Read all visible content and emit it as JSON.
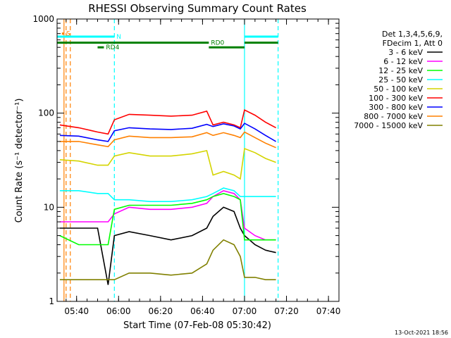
{
  "chart_data": {
    "type": "line",
    "title": "RHESSI Observing Summary Count Rates",
    "xlabel": "Start Time (07-Feb-08 05:30:42)",
    "ylabel": "Count Rate (s⁻¹ detector⁻¹)",
    "y_scale": "log",
    "ylim": [
      1,
      1000
    ],
    "xlim": [
      "05:30:42",
      "07:45:00"
    ],
    "x_ticks": [
      "05:40",
      "06:00",
      "06:20",
      "06:40",
      "07:00",
      "07:20",
      "07:40"
    ],
    "y_ticks": [
      "1",
      "10",
      "100",
      "1000"
    ],
    "legend_header": [
      "Det 1,3,4,5,6,9,",
      "FDecim 1, Att 0"
    ],
    "legend_placement": "right",
    "grid": false,
    "series": [
      {
        "name": "3 - 6 keV",
        "color": "#000000",
        "x": [
          "05:32",
          "05:36",
          "05:41",
          "05:50",
          "05:55",
          "05:58",
          "06:05",
          "06:15",
          "06:25",
          "06:35",
          "06:42",
          "06:45",
          "06:50",
          "06:55",
          "06:58",
          "07:00",
          "07:05",
          "07:10",
          "07:15"
        ],
        "y": [
          6,
          6,
          6,
          6,
          1.5,
          5,
          5.5,
          5,
          4.5,
          5,
          6,
          8,
          10,
          9,
          6,
          5,
          4,
          3.5,
          3.3
        ]
      },
      {
        "name": "6 - 12 keV",
        "color": "#ff00ff",
        "x": [
          "05:32",
          "05:41",
          "05:50",
          "05:55",
          "05:58",
          "06:05",
          "06:15",
          "06:25",
          "06:35",
          "06:42",
          "06:45",
          "06:50",
          "06:55",
          "06:58",
          "07:00",
          "07:05",
          "07:10",
          "07:15"
        ],
        "y": [
          7,
          7,
          7,
          7,
          8.5,
          10,
          9.5,
          9.5,
          10,
          11,
          13,
          15,
          14,
          12,
          6,
          5,
          4.5,
          4.5
        ]
      },
      {
        "name": "12 - 25 keV",
        "color": "#00ff00",
        "x": [
          "05:32",
          "05:41",
          "05:50",
          "05:55",
          "05:58",
          "06:05",
          "06:15",
          "06:25",
          "06:35",
          "06:42",
          "06:45",
          "06:50",
          "06:55",
          "06:58",
          "07:00",
          "07:05",
          "07:10",
          "07:15"
        ],
        "y": [
          5,
          4,
          4,
          4,
          9.5,
          10.5,
          10.5,
          10.5,
          11,
          12,
          13,
          14,
          13,
          12,
          4.5,
          4.5,
          4.5,
          4.5
        ]
      },
      {
        "name": "25 - 50 keV",
        "color": "#00ffff",
        "x": [
          "05:32",
          "05:41",
          "05:50",
          "05:55",
          "05:58",
          "06:05",
          "06:15",
          "06:25",
          "06:35",
          "06:42",
          "06:45",
          "06:50",
          "06:55",
          "06:58",
          "07:00",
          "07:05",
          "07:10",
          "07:15"
        ],
        "y": [
          15,
          15,
          14,
          14,
          12,
          12,
          11.5,
          11.5,
          12,
          13,
          14,
          16,
          15,
          13,
          13,
          13,
          13,
          13
        ]
      },
      {
        "name": "50 - 100 keV",
        "color": "#d4d400",
        "x": [
          "05:32",
          "05:41",
          "05:50",
          "05:55",
          "05:58",
          "06:05",
          "06:15",
          "06:25",
          "06:35",
          "06:42",
          "06:45",
          "06:50",
          "06:55",
          "06:58",
          "07:00",
          "07:05",
          "07:10",
          "07:15"
        ],
        "y": [
          32,
          31,
          28,
          28,
          35,
          38,
          35,
          35,
          37,
          40,
          22,
          24,
          22,
          20,
          42,
          38,
          33,
          30
        ]
      },
      {
        "name": "100 - 300 keV",
        "color": "#ff0000",
        "x": [
          "05:32",
          "05:41",
          "05:50",
          "05:55",
          "05:58",
          "06:05",
          "06:15",
          "06:25",
          "06:35",
          "06:42",
          "06:45",
          "06:50",
          "06:55",
          "06:58",
          "07:00",
          "07:05",
          "07:10",
          "07:15"
        ],
        "y": [
          75,
          70,
          63,
          60,
          85,
          97,
          95,
          93,
          95,
          105,
          75,
          80,
          75,
          70,
          108,
          95,
          80,
          70
        ]
      },
      {
        "name": "300 - 800 keV",
        "color": "#0000ff",
        "x": [
          "05:32",
          "05:41",
          "05:50",
          "05:55",
          "05:58",
          "06:05",
          "06:15",
          "06:25",
          "06:35",
          "06:42",
          "06:45",
          "06:50",
          "06:55",
          "06:58",
          "07:00",
          "07:05",
          "07:10",
          "07:15"
        ],
        "y": [
          58,
          57,
          52,
          50,
          65,
          70,
          68,
          67,
          69,
          76,
          72,
          77,
          73,
          68,
          78,
          68,
          58,
          50
        ]
      },
      {
        "name": "800 - 7000 keV",
        "color": "#ff8000",
        "x": [
          "05:32",
          "05:41",
          "05:50",
          "05:55",
          "05:58",
          "06:05",
          "06:15",
          "06:25",
          "06:35",
          "06:42",
          "06:45",
          "06:50",
          "06:55",
          "06:58",
          "07:00",
          "07:05",
          "07:10",
          "07:15"
        ],
        "y": [
          50,
          50,
          46,
          44,
          52,
          57,
          55,
          55,
          56,
          62,
          58,
          62,
          58,
          55,
          63,
          55,
          48,
          43
        ]
      },
      {
        "name": "7000 - 15000 keV",
        "color": "#808000",
        "x": [
          "05:32",
          "05:41",
          "05:50",
          "05:55",
          "05:58",
          "06:05",
          "06:15",
          "06:25",
          "06:35",
          "06:42",
          "06:45",
          "06:50",
          "06:55",
          "06:58",
          "07:00",
          "07:05",
          "07:10",
          "07:15"
        ],
        "y": [
          1.7,
          1.7,
          1.7,
          1.7,
          1.7,
          2.0,
          2.0,
          1.9,
          2.0,
          2.5,
          3.5,
          4.5,
          4.0,
          3.0,
          1.8,
          1.8,
          1.7,
          1.7
        ]
      }
    ],
    "vertical_markers": [
      {
        "time": "05:34:00",
        "color": "#ff8000",
        "style": "solid"
      },
      {
        "time": "05:35:00",
        "color": "#ff8000",
        "style": "dashed"
      },
      {
        "time": "05:37:00",
        "color": "#ff8000",
        "style": "dashed"
      },
      {
        "time": "05:58:00",
        "color": "#00ffff",
        "style": "dashed"
      },
      {
        "time": "07:00:00",
        "color": "#00ffff",
        "style": "solid"
      },
      {
        "time": "07:16:00",
        "color": "#00ffff",
        "style": "dashed"
      }
    ],
    "flag_bars": [
      {
        "label": "N",
        "color": "#00ffff",
        "y": 650,
        "from": "05:30:42",
        "to": "05:58:00"
      },
      {
        "label": "",
        "color": "#00ffff",
        "y": 650,
        "from": "07:00:00",
        "to": "07:16:00"
      },
      {
        "label": "RD0",
        "color": "#008000",
        "y": 560,
        "from": "05:30:42",
        "to": "06:43:00"
      },
      {
        "label": "",
        "color": "#008000",
        "y": 560,
        "from": "07:00:00",
        "to": "07:16:00"
      },
      {
        "label": "",
        "color": "#008000",
        "y": 500,
        "from": "06:43:00",
        "to": "07:00:00"
      },
      {
        "label": "RD4",
        "color": "#008000",
        "y": 500,
        "from": "05:50:00",
        "to": "05:53:00"
      },
      {
        "label": "S",
        "color": "#ff8000",
        "y": 700,
        "from": "05:33:00",
        "to": "05:34:00"
      }
    ],
    "timestamp": "13-Oct-2021 18:56"
  }
}
